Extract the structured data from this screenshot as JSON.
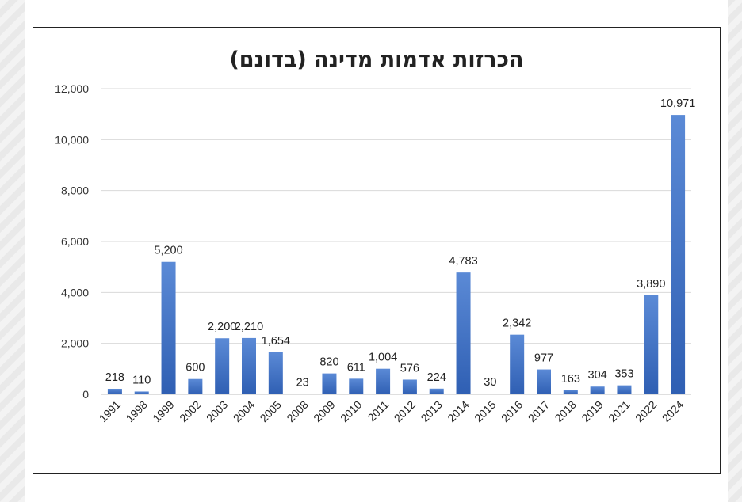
{
  "chart_data": {
    "type": "bar",
    "title": "הכרזות אדמות מדינה (בדונם)",
    "xlabel": "",
    "ylabel": "",
    "ylim": [
      0,
      12000
    ],
    "yticks": [
      "0",
      "2,000",
      "4,000",
      "6,000",
      "8,000",
      "10,000",
      "12,000"
    ],
    "categories": [
      "1991",
      "1998",
      "1999",
      "2002",
      "2003",
      "2004",
      "2005",
      "2008",
      "2009",
      "2010",
      "2011",
      "2012",
      "2013",
      "2014",
      "2015",
      "2016",
      "2017",
      "2018",
      "2019",
      "2021",
      "2022",
      "2024"
    ],
    "values": [
      218,
      110,
      5200,
      600,
      2200,
      2210,
      1654,
      23,
      820,
      611,
      1004,
      576,
      224,
      4783,
      30,
      2342,
      977,
      163,
      304,
      353,
      3890,
      10971
    ],
    "labels": [
      "218",
      "110",
      "5,200",
      "600",
      "2,200",
      "2,210",
      "1,654",
      "23",
      "820",
      "611",
      "1,004",
      "576",
      "224",
      "4,783",
      "30",
      "2,342",
      "977",
      "163",
      "304",
      "353",
      "3,890",
      "10,971"
    ],
    "grid": true,
    "colors": {
      "bar": "#4472c4"
    }
  }
}
